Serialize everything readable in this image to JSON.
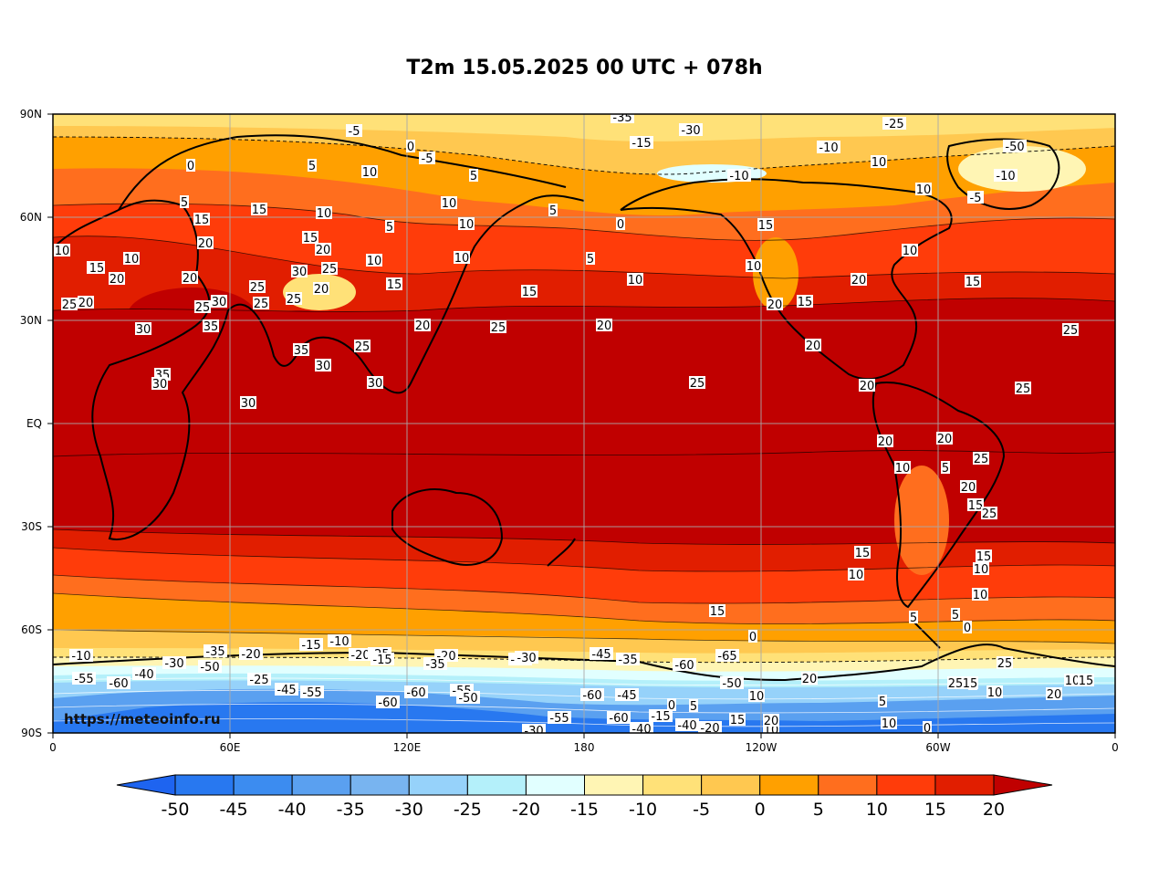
{
  "title": "T2m 15.05.2025 00 UTC + 078h",
  "watermark": "https://meteoinfo.ru",
  "lat_labels": [
    "90N",
    "60N",
    "30N",
    "EQ",
    "30S",
    "60S",
    "90S"
  ],
  "lon_labels": [
    "0",
    "60E",
    "120E",
    "180",
    "120W",
    "60W",
    "0"
  ],
  "colorbar": {
    "levels": [
      "-50",
      "-45",
      "-40",
      "-35",
      "-30",
      "-25",
      "-20",
      "-15",
      "-10",
      "-5",
      "0",
      "5",
      "10",
      "15",
      "20"
    ],
    "colors": [
      "#1e64f0",
      "#2878f0",
      "#3c8cf0",
      "#5aa0f0",
      "#78b4f0",
      "#96d2fa",
      "#b4f0fa",
      "#e1ffff",
      "#fff5b4",
      "#ffe178",
      "#ffc850",
      "#ffa000",
      "#ff6e1e",
      "#ff3c0a",
      "#e11e00",
      "#c00000"
    ]
  },
  "contour_labels": [
    "-5",
    "-5",
    "-5",
    "-5",
    "-5",
    "0",
    "-5",
    "0",
    "5",
    "10",
    "-10",
    "-10",
    "-50",
    "-10",
    "-5",
    "10",
    "10",
    "5",
    "5",
    "0",
    "5",
    "15",
    "15",
    "10",
    "10",
    "10",
    "10",
    "20",
    "20",
    "15",
    "30",
    "25",
    "10",
    "5",
    "10",
    "15",
    "10",
    "15",
    "30",
    "10",
    "25",
    "15",
    "20",
    "5",
    "25",
    "20",
    "20",
    "25",
    "30",
    "35",
    "35",
    "30",
    "35",
    "30",
    "25",
    "30",
    "30",
    "20",
    "25",
    "25",
    "15",
    "20",
    "10",
    "25",
    "20",
    "20",
    "25",
    "25",
    "25",
    "20",
    "20",
    "10",
    "15",
    "20",
    "20",
    "25",
    "15",
    "15",
    "5",
    "25",
    "20",
    "15",
    "20",
    "15",
    "10",
    "10",
    "15",
    "10",
    "15",
    "10",
    "5",
    "0",
    "5",
    "0",
    "-10",
    "-55",
    "-60",
    "-40",
    "-30",
    "-35",
    "-50",
    "-20",
    "-25",
    "-45",
    "-55",
    "-60",
    "-60",
    "-55",
    "-50",
    "-15",
    "-10",
    "-20",
    "-25",
    "-15",
    "-20",
    "-35",
    "-40",
    "-30",
    "-45",
    "-35",
    "-60",
    "-65",
    "-50",
    "-60",
    "-45",
    "-55",
    "-60",
    "-40",
    "-30",
    "-15",
    "-40",
    "-20",
    "0",
    "5",
    "15",
    "10",
    "20",
    "10",
    "20",
    "25",
    "10",
    "15",
    "20",
    "25",
    "5",
    "10",
    "15",
    "5",
    "10",
    "0",
    "-5",
    "-35",
    "-15",
    "-30",
    "-25"
  ]
}
